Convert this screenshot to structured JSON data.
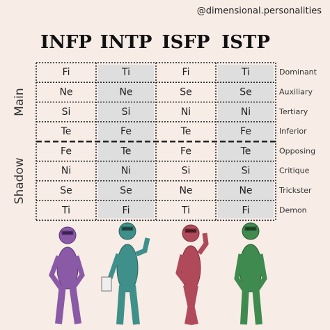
{
  "handle": "@dimensional.personalities",
  "types": [
    "INFP",
    "INTP",
    "ISFP",
    "ISTP"
  ],
  "groups": [
    "Main",
    "Shadow"
  ],
  "positions": [
    "Dominant",
    "Auxiliary",
    "Tertiary",
    "Inferior",
    "Opposing",
    "Critique",
    "Trickster",
    "Demon"
  ],
  "rows": [
    [
      "Fi",
      "Ti",
      "Fi",
      "Ti"
    ],
    [
      "Ne",
      "Ne",
      "Se",
      "Se"
    ],
    [
      "Si",
      "Si",
      "Ni",
      "Ni"
    ],
    [
      "Te",
      "Fe",
      "Te",
      "Fe"
    ],
    [
      "Fe",
      "Te",
      "Fe",
      "Te"
    ],
    [
      "Ni",
      "Ni",
      "Si",
      "Si"
    ],
    [
      "Se",
      "Se",
      "Ne",
      "Ne"
    ],
    [
      "Ti",
      "Fi",
      "Ti",
      "Fi"
    ]
  ]
}
